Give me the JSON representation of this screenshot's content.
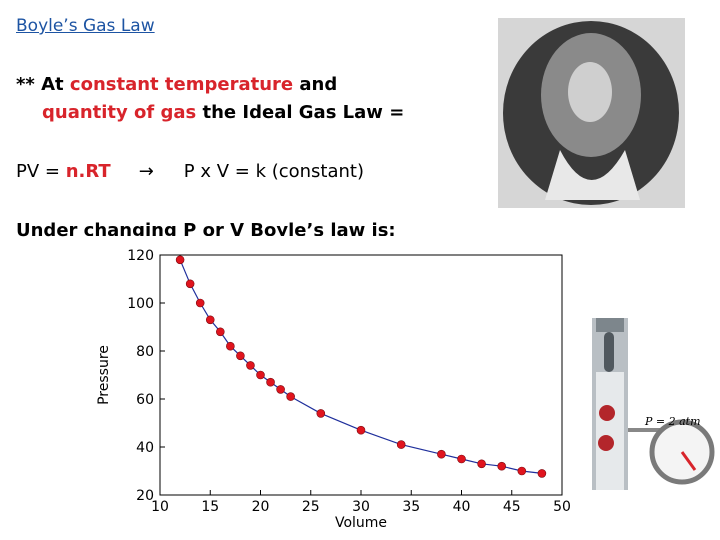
{
  "slide": {
    "title": "Boyle’s Gas Law",
    "line1": [
      "** At ",
      "constant temperature",
      " and"
    ],
    "line2": [
      "quantity of gas",
      " the Ideal Gas Law ="
    ],
    "line3": [
      "PV = ",
      "n.RT",
      "→",
      "P x V = k (constant)"
    ],
    "line4": "Under changing P or V Boyle’s law is:",
    "piston_label": "P = 2 atm"
  },
  "chart_data": {
    "type": "line",
    "x_label": "Volume",
    "y_label": "Pressure",
    "x": [
      12,
      13,
      14,
      15,
      16,
      17,
      18,
      19,
      20,
      21,
      22,
      23,
      26,
      30,
      34,
      38,
      40,
      42,
      44,
      46,
      48
    ],
    "y": [
      118,
      108,
      100,
      93,
      88,
      82,
      78,
      74,
      70,
      67,
      64,
      61,
      54,
      47,
      41,
      37,
      35,
      33,
      32,
      30,
      29
    ],
    "line_color": "#1f2f9c",
    "marker_color": "#e0141e",
    "xlim": [
      10,
      50
    ],
    "ylim": [
      20,
      120
    ],
    "xticks": [
      10,
      15,
      20,
      25,
      30,
      35,
      40,
      45,
      50
    ],
    "yticks": [
      20,
      40,
      60,
      80,
      100,
      120
    ]
  }
}
